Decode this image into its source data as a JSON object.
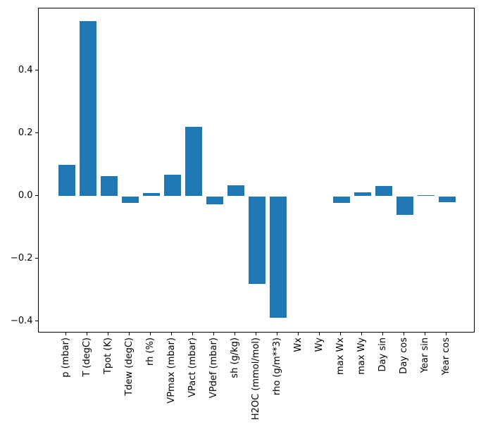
{
  "figure": {
    "background": "#ffffff",
    "bar_color": "#1f77b4",
    "spine_color": "#000000",
    "text_color": "#000000"
  },
  "chart_data": {
    "type": "bar",
    "title": "",
    "xlabel": "",
    "ylabel": "",
    "categories": [
      "p (mbar)",
      "T (degC)",
      "Tpot (K)",
      "Tdew (degC)",
      "rh (%)",
      "VPmax (mbar)",
      "VPact (mbar)",
      "VPdef (mbar)",
      "sh (g/kg)",
      "H2OC (mmol/mol)",
      "rho (g/m**3)",
      "Wx",
      "Wy",
      "max Wx",
      "max Wy",
      "Day sin",
      "Day cos",
      "Year sin",
      "Year cos"
    ],
    "values": [
      0.1,
      0.558,
      0.063,
      -0.021,
      0.01,
      0.068,
      0.221,
      -0.025,
      0.035,
      -0.28,
      -0.389,
      0.0,
      0.0,
      -0.022,
      0.013,
      0.032,
      -0.06,
      0.003,
      -0.018
    ],
    "yticks": [
      0.4,
      0.2,
      0.0,
      -0.2,
      -0.4
    ],
    "ytick_labels": [
      "0.4",
      "0.2",
      "0.0",
      "−0.2",
      "−0.4"
    ],
    "ylim": [
      -0.436,
      0.6
    ],
    "grid": false,
    "legend": null,
    "x_label_rotation_deg": 90
  }
}
